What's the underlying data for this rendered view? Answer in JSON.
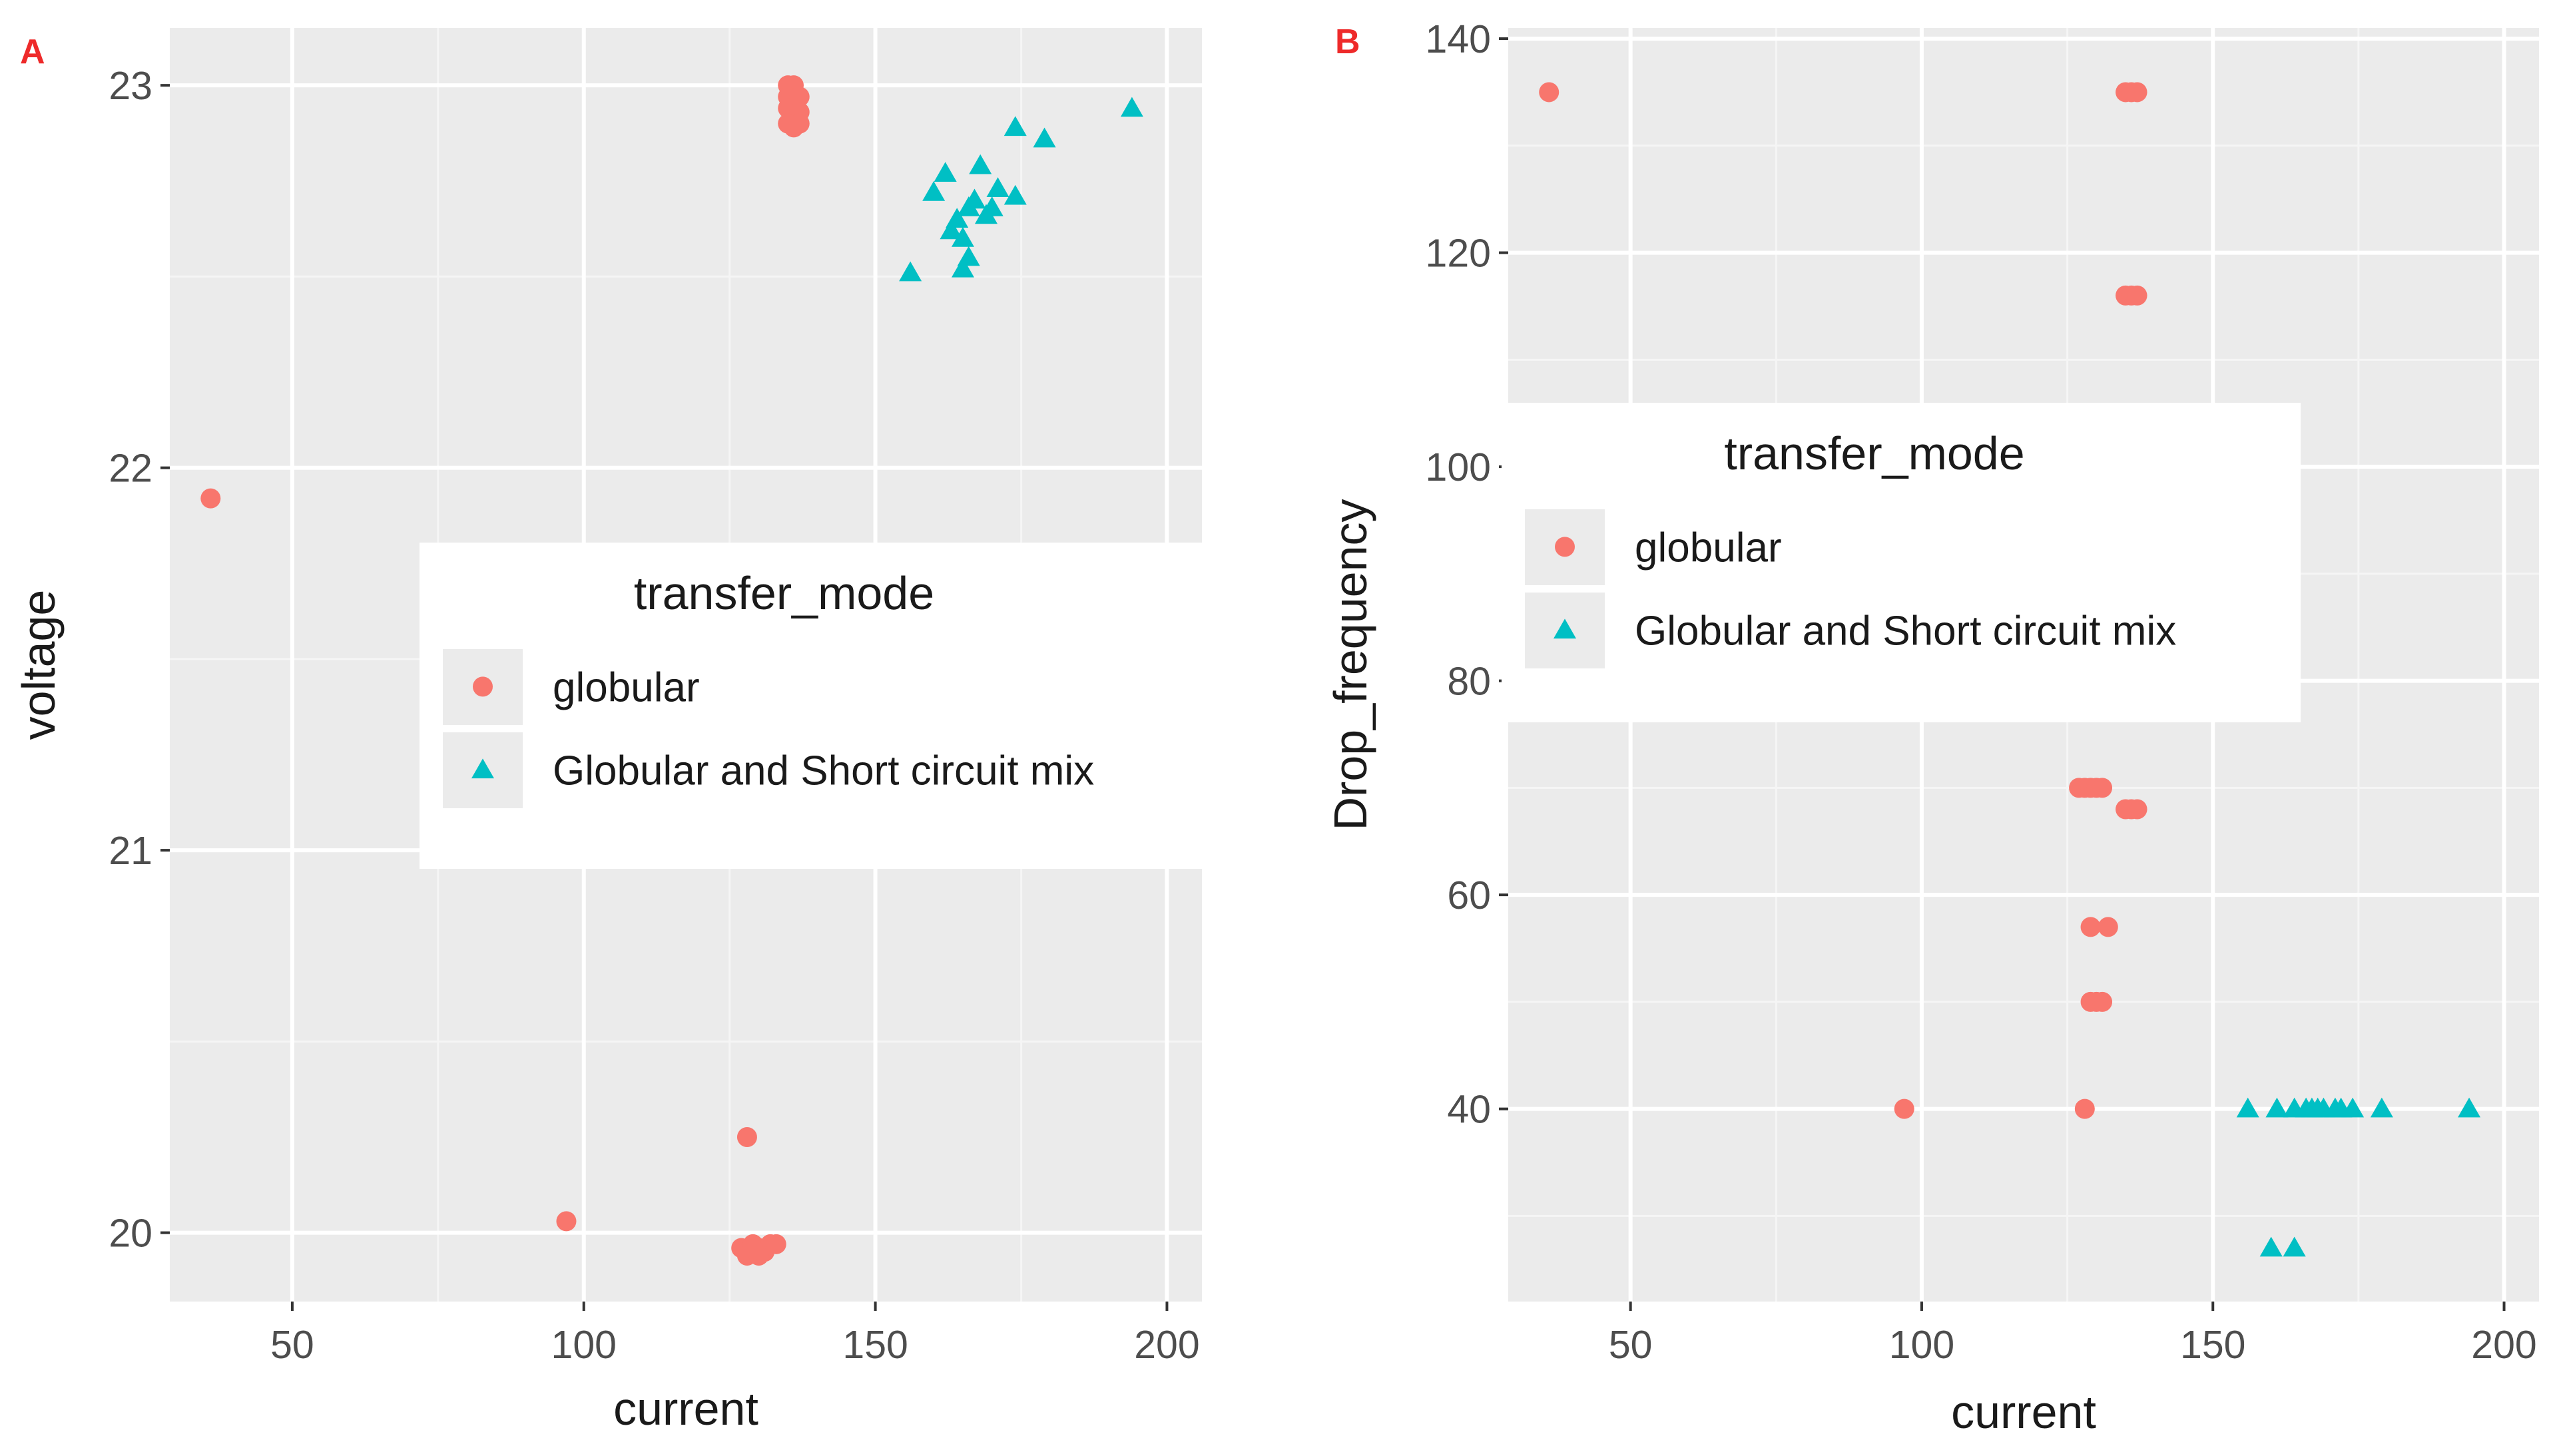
{
  "colors": {
    "panel_bg": "#ebebeb",
    "grid_major": "#ffffff",
    "grid_minor": "#f5f5f5",
    "globular": "#f8766d",
    "mix": "#00bfc4",
    "tag": "#ee2a2a",
    "tick": "#4d4d4d"
  },
  "chart_data": [
    {
      "panel": "A",
      "type": "scatter",
      "xlabel": "current",
      "ylabel": "voltage",
      "xlim": [
        29,
        206
      ],
      "ylim": [
        19.82,
        23.15
      ],
      "xticks": [
        50,
        100,
        150,
        200
      ],
      "yticks": [
        20,
        21,
        22,
        23
      ],
      "grid": true,
      "legend": {
        "title": "transfer_mode",
        "position": "inside-center-right",
        "entries": [
          "globular",
          "Globular and Short circuit mix"
        ]
      },
      "series": [
        {
          "name": "globular",
          "marker": "circle",
          "points": [
            [
              36,
              21.92
            ],
            [
              97,
              20.03
            ],
            [
              128,
              20.25
            ],
            [
              127,
              19.96
            ],
            [
              128,
              19.95
            ],
            [
              129,
              19.95
            ],
            [
              130,
              19.96
            ],
            [
              131,
              19.95
            ],
            [
              129,
              19.97
            ],
            [
              132,
              19.97
            ],
            [
              133,
              19.97
            ],
            [
              128,
              19.94
            ],
            [
              130,
              19.94
            ],
            [
              135,
              23.0
            ],
            [
              136,
              23.0
            ],
            [
              135,
              22.97
            ],
            [
              137,
              22.97
            ],
            [
              135,
              22.94
            ],
            [
              136,
              22.93
            ],
            [
              137,
              22.93
            ],
            [
              135,
              22.9
            ],
            [
              136,
              22.89
            ],
            [
              137,
              22.9
            ]
          ]
        },
        {
          "name": "Globular and Short circuit mix",
          "marker": "triangle",
          "points": [
            [
              156,
              22.51
            ],
            [
              160,
              22.72
            ],
            [
              162,
              22.77
            ],
            [
              164,
              22.65
            ],
            [
              165,
              22.6
            ],
            [
              165,
              22.52
            ],
            [
              166,
              22.55
            ],
            [
              166,
              22.68
            ],
            [
              167,
              22.7
            ],
            [
              168,
              22.79
            ],
            [
              170,
              22.68
            ],
            [
              171,
              22.73
            ],
            [
              174,
              22.71
            ],
            [
              174,
              22.89
            ],
            [
              179,
              22.86
            ],
            [
              194,
              22.94
            ],
            [
              163,
              22.62
            ],
            [
              169,
              22.66
            ]
          ]
        }
      ]
    },
    {
      "panel": "B",
      "type": "scatter",
      "xlabel": "current",
      "ylabel": "Drop_frequency",
      "xlim": [
        29,
        206
      ],
      "ylim": [
        22,
        141
      ],
      "xticks": [
        50,
        100,
        150,
        200
      ],
      "yticks": [
        40,
        60,
        80,
        100,
        120,
        140
      ],
      "grid": true,
      "legend": {
        "title": "transfer_mode",
        "position": "inside-top-center",
        "entries": [
          "globular",
          "Globular and Short circuit mix"
        ]
      },
      "series": [
        {
          "name": "globular",
          "marker": "circle",
          "points": [
            [
              36,
              135
            ],
            [
              135,
              135
            ],
            [
              136,
              135
            ],
            [
              137,
              135
            ],
            [
              135,
              116
            ],
            [
              136,
              116
            ],
            [
              137,
              116
            ],
            [
              127,
              70
            ],
            [
              128,
              70
            ],
            [
              129,
              70
            ],
            [
              130,
              70
            ],
            [
              131,
              70
            ],
            [
              135,
              68
            ],
            [
              136,
              68
            ],
            [
              137,
              68
            ],
            [
              129,
              57
            ],
            [
              132,
              57
            ],
            [
              129,
              50
            ],
            [
              130,
              50
            ],
            [
              131,
              50
            ],
            [
              97,
              40
            ],
            [
              128,
              40
            ]
          ]
        },
        {
          "name": "Globular and Short circuit mix",
          "marker": "triangle",
          "points": [
            [
              156,
              40
            ],
            [
              161,
              40
            ],
            [
              164,
              40
            ],
            [
              166,
              40
            ],
            [
              167,
              40
            ],
            [
              168,
              40
            ],
            [
              169,
              40
            ],
            [
              171,
              40
            ],
            [
              172,
              40
            ],
            [
              174,
              40
            ],
            [
              179,
              40
            ],
            [
              194,
              40
            ],
            [
              160,
              27
            ],
            [
              164,
              27
            ]
          ]
        }
      ]
    }
  ]
}
